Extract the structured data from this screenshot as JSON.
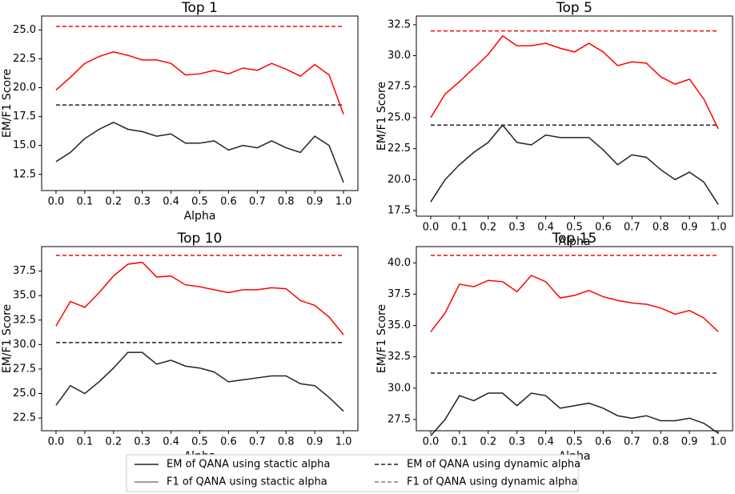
{
  "chart_data": [
    {
      "type": "line",
      "title": "Top 1",
      "xlabel": "Alpha",
      "ylabel": "EM/F1 Score",
      "x": [
        0,
        0.05,
        0.1,
        0.15,
        0.2,
        0.25,
        0.3,
        0.35,
        0.4,
        0.45,
        0.5,
        0.55,
        0.6,
        0.65,
        0.7,
        0.75,
        0.8,
        0.85,
        0.9,
        0.95,
        1
      ],
      "series": [
        {
          "color": "#222222",
          "values": [
            13.6,
            14.4,
            15.6,
            16.4,
            17.0,
            16.4,
            16.2,
            15.8,
            16.0,
            15.2,
            15.2,
            15.4,
            14.6,
            15.0,
            14.8,
            15.4,
            14.8,
            14.4,
            15.8,
            15.0,
            11.8
          ]
        },
        {
          "color": "#ff0000",
          "values": [
            19.8,
            20.9,
            22.1,
            22.7,
            23.1,
            22.8,
            22.4,
            22.4,
            22.1,
            21.1,
            21.2,
            21.5,
            21.2,
            21.7,
            21.5,
            22.1,
            21.6,
            21.0,
            22.0,
            21.1,
            17.7
          ]
        }
      ],
      "hlines": [
        {
          "value": 18.5,
          "color": "#222222"
        },
        {
          "value": 25.3,
          "color": "#ff0000"
        }
      ],
      "xlim": [
        -0.05,
        1.05
      ],
      "ylim": [
        11.1,
        26.2
      ],
      "xticks": [
        {
          "value": 0,
          "label": "0.0"
        },
        0.1,
        0.2,
        0.3,
        0.4,
        0.5,
        0.6,
        0.7,
        0.8,
        0.9,
        {
          "value": 1,
          "label": "1.0"
        }
      ],
      "yticks": [
        12.5,
        {
          "value": 15,
          "label": "15.0"
        },
        17.5,
        {
          "value": 20,
          "label": "20.0"
        },
        22.5,
        {
          "value": 25,
          "label": "25.0"
        }
      ]
    },
    {
      "type": "line",
      "title": "Top 5",
      "xlabel": "Alpha",
      "ylabel": "EM/F1 Score",
      "x": [
        0,
        0.05,
        0.1,
        0.15,
        0.2,
        0.25,
        0.3,
        0.35,
        0.4,
        0.45,
        0.5,
        0.55,
        0.6,
        0.65,
        0.7,
        0.75,
        0.8,
        0.85,
        0.9,
        0.95,
        1
      ],
      "series": [
        {
          "color": "#222222",
          "values": [
            18.2,
            20.0,
            21.2,
            22.2,
            23.0,
            24.4,
            23.0,
            22.8,
            23.6,
            23.4,
            23.4,
            23.4,
            22.4,
            21.2,
            22.0,
            21.8,
            20.8,
            20.0,
            20.6,
            19.8,
            18.0
          ]
        },
        {
          "color": "#ff0000",
          "values": [
            25.0,
            26.9,
            27.9,
            29.0,
            30.1,
            31.6,
            30.8,
            30.8,
            31.0,
            30.6,
            30.3,
            31.0,
            30.3,
            29.2,
            29.5,
            29.4,
            28.3,
            27.7,
            28.1,
            26.5,
            24.1
          ]
        }
      ],
      "hlines": [
        {
          "value": 24.4,
          "color": "#222222"
        },
        {
          "value": 32.0,
          "color": "#ff0000"
        }
      ],
      "xlim": [
        -0.05,
        1.05
      ],
      "ylim": [
        17.05,
        33.2
      ],
      "xticks": [
        {
          "value": 0,
          "label": "0.0"
        },
        0.1,
        0.2,
        0.3,
        0.4,
        0.5,
        0.6,
        0.7,
        0.8,
        0.9,
        {
          "value": 1,
          "label": "1.0"
        }
      ],
      "yticks": [
        17.5,
        {
          "value": 20,
          "label": "20.0"
        },
        22.5,
        {
          "value": 25,
          "label": "25.0"
        },
        27.5,
        {
          "value": 30,
          "label": "30.0"
        },
        32.5
      ]
    },
    {
      "type": "line",
      "title": "Top 10",
      "xlabel": "Alpha",
      "ylabel": "EM/F1 Score",
      "x": [
        0,
        0.05,
        0.1,
        0.15,
        0.2,
        0.25,
        0.3,
        0.35,
        0.4,
        0.45,
        0.5,
        0.55,
        0.6,
        0.65,
        0.7,
        0.75,
        0.8,
        0.85,
        0.9,
        0.95,
        1
      ],
      "series": [
        {
          "color": "#222222",
          "values": [
            23.8,
            25.8,
            25.0,
            26.2,
            27.6,
            29.2,
            29.2,
            28.0,
            28.4,
            27.8,
            27.6,
            27.2,
            26.2,
            26.4,
            26.6,
            26.8,
            26.8,
            26.0,
            25.8,
            24.6,
            23.2
          ]
        },
        {
          "color": "#ff0000",
          "values": [
            31.9,
            34.4,
            33.8,
            35.3,
            37.0,
            38.2,
            38.4,
            36.9,
            37.0,
            36.1,
            35.9,
            35.6,
            35.3,
            35.6,
            35.6,
            35.8,
            35.7,
            34.5,
            34.0,
            32.8,
            31.0
          ]
        }
      ],
      "hlines": [
        {
          "value": 30.2,
          "color": "#222222"
        },
        {
          "value": 39.1,
          "color": "#ff0000"
        }
      ],
      "xlim": [
        -0.05,
        1.05
      ],
      "ylim": [
        21.2,
        40.0
      ],
      "xticks": [
        {
          "value": 0,
          "label": "0.0"
        },
        0.1,
        0.2,
        0.3,
        0.4,
        0.5,
        0.6,
        0.7,
        0.8,
        0.9,
        {
          "value": 1,
          "label": "1.0"
        }
      ],
      "yticks": [
        22.5,
        {
          "value": 25,
          "label": "25.0"
        },
        27.5,
        {
          "value": 30,
          "label": "30.0"
        },
        32.5,
        {
          "value": 35,
          "label": "35.0"
        },
        37.5
      ]
    },
    {
      "type": "line",
      "title": "Top 15",
      "xlabel": "Alpha",
      "ylabel": "EM/F1 Score",
      "x": [
        0,
        0.05,
        0.1,
        0.15,
        0.2,
        0.25,
        0.3,
        0.35,
        0.4,
        0.45,
        0.5,
        0.55,
        0.6,
        0.65,
        0.7,
        0.75,
        0.8,
        0.85,
        0.9,
        0.95,
        1
      ],
      "series": [
        {
          "color": "#222222",
          "values": [
            26.2,
            27.5,
            29.4,
            29.0,
            29.6,
            29.6,
            28.6,
            29.6,
            29.4,
            28.4,
            28.6,
            28.8,
            28.4,
            27.8,
            27.6,
            27.8,
            27.4,
            27.4,
            27.6,
            27.2,
            26.4
          ]
        },
        {
          "color": "#ff0000",
          "values": [
            34.5,
            36.0,
            38.3,
            38.1,
            38.6,
            38.5,
            37.7,
            39.0,
            38.5,
            37.2,
            37.4,
            37.8,
            37.3,
            37.0,
            36.8,
            36.7,
            36.4,
            35.9,
            36.2,
            35.6,
            34.5
          ]
        }
      ],
      "hlines": [
        {
          "value": 31.2,
          "color": "#222222"
        },
        {
          "value": 40.6,
          "color": "#ff0000"
        }
      ],
      "xlim": [
        -0.05,
        1.05
      ],
      "ylim": [
        26.6,
        41.3
      ],
      "xticks": [
        {
          "value": 0,
          "label": "0.0"
        },
        0.1,
        0.2,
        0.3,
        0.4,
        0.5,
        0.6,
        0.7,
        0.8,
        0.9,
        {
          "value": 1,
          "label": "1.0"
        }
      ],
      "yticks": [
        27.5,
        {
          "value": 30,
          "label": "30.0"
        },
        32.5,
        {
          "value": 35,
          "label": "35.0"
        },
        37.5,
        {
          "value": 40,
          "label": "40.0"
        }
      ]
    }
  ],
  "legend": {
    "entries": [
      {
        "name": "EM of QANA using stactic alpha",
        "color": "#222222",
        "dash": false
      },
      {
        "name": "F1 of QANA using stactic alpha",
        "color": "#808080",
        "dash": false
      },
      {
        "name": "EM of QANA using dynamic alpha",
        "color": "#222222",
        "dash": true
      },
      {
        "name": "F1 of QANA using dynamic alpha",
        "color": "#808080",
        "dash": true
      }
    ]
  }
}
